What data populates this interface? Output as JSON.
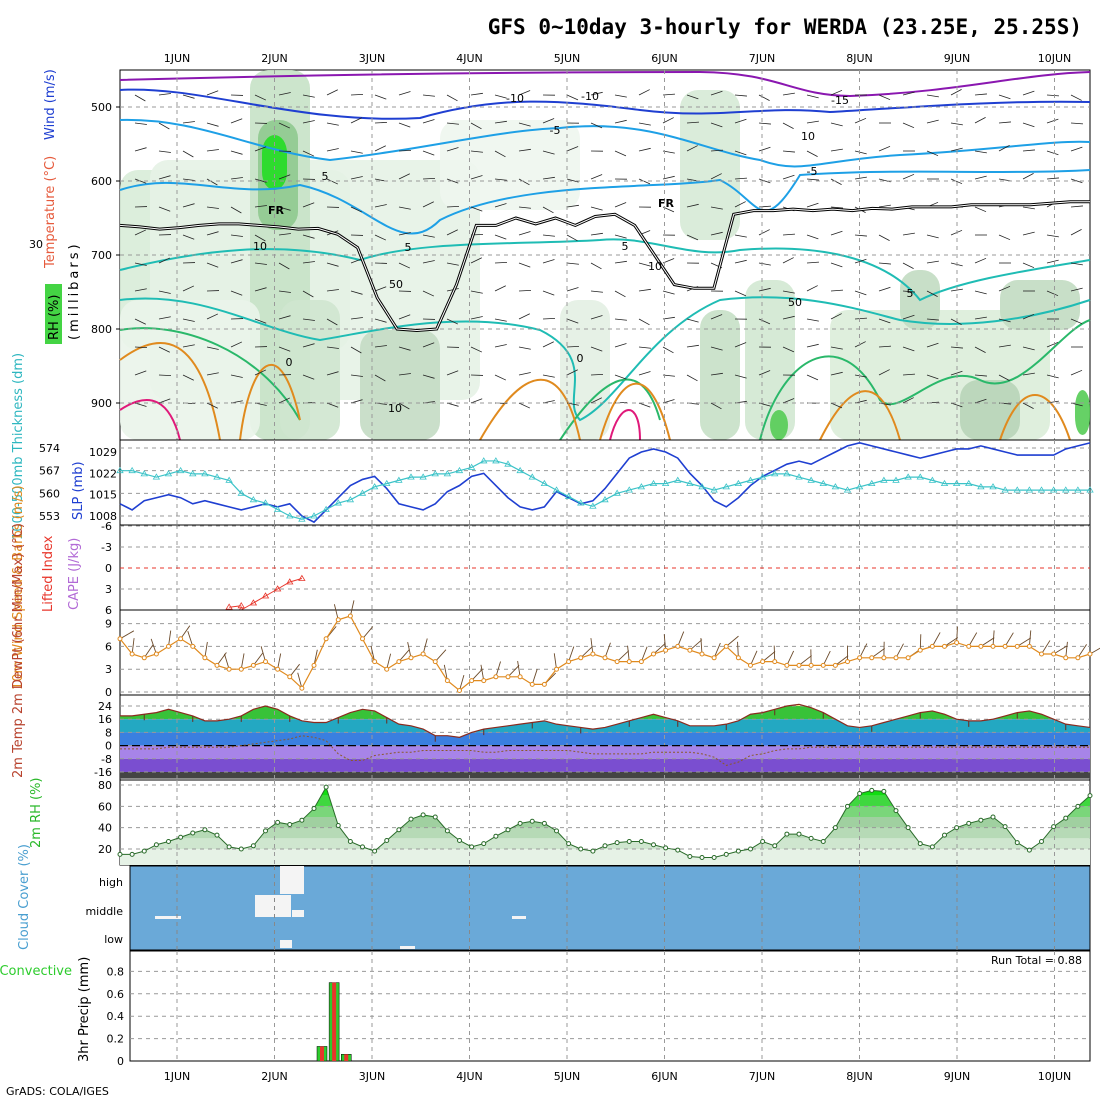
{
  "header": {
    "title": "GFS 0~10day 3-hourly for WERDA (23.25E, 25.25S)",
    "credit": "GrADS: COLA/IGES"
  },
  "time_axis": {
    "labels": [
      "1JUN",
      "2JUN",
      "3JUN",
      "4JUN",
      "5JUN",
      "6JUN",
      "7JUN",
      "8JUN",
      "9JUN",
      "10JUN"
    ]
  },
  "colors": {
    "purple": "#8a17b0",
    "blue": "#1f3fd1",
    "lightblue": "#1ea0e6",
    "teal": "#1fbcb4",
    "green": "#2ab86a",
    "orange": "#e08a1e",
    "magenta": "#e0197a",
    "cyan": "#3cc3c8",
    "cloud": "#6aa9d8",
    "precip_green": "#2ecc2e",
    "precip_red": "#e8362b"
  },
  "chart_data": [
    {
      "type": "heatmap",
      "name": "vertical cross-section",
      "ylabel_parts": [
        "RH (%)",
        "Temperature (°C)",
        "Wind (m/s)"
      ],
      "ylabel_units": "(millibars)",
      "ylim": [
        950,
        450
      ],
      "yticks": [
        500,
        600,
        700,
        800,
        900
      ],
      "contour_labels": [
        "-15",
        "-10",
        "-5",
        "-5",
        "5",
        "10",
        "5",
        "5",
        "10",
        "0",
        "-10",
        "10",
        "10",
        "50",
        "50",
        "30",
        "0",
        "5"
      ],
      "freezing_label": "FR",
      "freezing_level_mb": [
        660,
        662,
        665,
        663,
        660,
        658,
        658,
        660,
        662,
        665,
        664,
        672,
        690,
        758,
        800,
        802,
        800,
        740,
        660,
        660,
        650,
        658,
        650,
        660,
        648,
        645,
        660,
        700,
        740,
        745,
        745,
        645,
        640,
        640,
        638,
        640,
        638,
        640,
        637,
        638,
        635,
        635,
        635,
        632,
        632,
        632,
        632,
        630,
        628,
        628
      ]
    },
    {
      "type": "line",
      "name": "thickness and SLP",
      "ylabel_left": "1000-500mb Thickness (dm)",
      "ylabel_right": "SLP (mb)",
      "left_ticks": [
        574,
        567,
        560,
        553
      ],
      "right_ticks": [
        1029,
        1022,
        1015,
        1008
      ],
      "series": [
        {
          "name": "1000-500mb Thickness (dm)",
          "values": [
            567,
            567,
            566,
            565,
            566,
            567,
            566,
            566,
            565,
            564,
            560,
            558,
            557,
            555,
            553,
            552,
            553,
            555,
            557,
            558,
            560,
            562,
            563,
            564,
            565,
            565,
            566,
            566,
            567,
            568,
            570,
            570,
            569,
            567,
            565,
            563,
            561,
            559,
            557,
            556,
            558,
            560,
            561,
            562,
            563,
            563,
            564,
            563,
            562,
            561,
            562,
            563,
            564,
            565,
            566,
            566,
            565,
            564,
            563,
            562,
            561,
            562,
            563,
            564,
            564,
            565,
            565,
            564,
            563,
            563,
            563,
            562,
            562,
            561,
            561,
            561,
            561,
            561,
            561,
            561,
            561
          ]
        },
        {
          "name": "SLP (mb)",
          "values": [
            1012,
            1010,
            1013,
            1014,
            1015,
            1014,
            1012,
            1013,
            1012,
            1011,
            1010,
            1011,
            1012,
            1011,
            1012,
            1008,
            1006,
            1010,
            1014,
            1018,
            1020,
            1021,
            1017,
            1012,
            1011,
            1010,
            1012,
            1016,
            1018,
            1021,
            1022,
            1018,
            1014,
            1011,
            1010,
            1011,
            1016,
            1014,
            1012,
            1013,
            1017,
            1022,
            1027,
            1029,
            1030,
            1029,
            1027,
            1022,
            1018,
            1013,
            1011,
            1014,
            1018,
            1021,
            1023,
            1025,
            1026,
            1025,
            1027,
            1029,
            1031,
            1032,
            1031,
            1030,
            1029,
            1028,
            1027,
            1028,
            1029,
            1030,
            1030,
            1031,
            1030,
            1029,
            1028,
            1028,
            1028,
            1028,
            1030,
            1031,
            1032
          ]
        }
      ]
    },
    {
      "type": "line",
      "name": "lifted index and CAPE",
      "ylabel_left": "Lifted Index",
      "ylabel_right": "CAPE (J/kg)",
      "ylim": [
        6,
        -6
      ],
      "yticks": [
        "-6",
        "-3",
        "0",
        "3",
        "6"
      ],
      "series": [
        {
          "name": "Lifted Index",
          "x": [
            10,
            11,
            12,
            13,
            14,
            15
          ],
          "values": [
            6,
            5,
            4,
            3,
            2,
            1.5
          ]
        },
        {
          "name": "Lifted Index (early)",
          "x": [
            9,
            10
          ],
          "values": [
            5.6,
            5.4
          ]
        }
      ]
    },
    {
      "type": "line",
      "name": "10m wind",
      "ylabel": "10m Wind Speed & Barbs (m/s)",
      "ylim": [
        0,
        10
      ],
      "yticks": [
        0,
        3,
        6,
        9
      ],
      "series": [
        {
          "name": "10m Wind Speed (m/s)",
          "values": [
            7,
            5,
            4.5,
            5,
            6,
            7,
            6,
            4.5,
            3.5,
            3,
            3,
            3.5,
            4,
            3,
            2,
            0.5,
            3.5,
            7,
            9.5,
            10,
            7,
            4,
            3,
            4,
            4.5,
            5,
            4,
            1.5,
            0.2,
            1.5,
            1.5,
            2,
            2,
            2,
            1,
            1,
            3,
            4,
            4.5,
            5,
            4.5,
            4,
            4,
            4,
            5,
            5.5,
            6,
            5.5,
            5,
            4.5,
            6,
            4.5,
            3.5,
            4,
            4,
            3.5,
            3.5,
            3.5,
            3.5,
            3.5,
            4,
            4.5,
            4.5,
            4.5,
            4.5,
            4.5,
            5.5,
            6,
            6,
            6.5,
            6,
            6,
            6,
            6,
            6,
            6,
            5,
            5,
            4.5,
            4.5,
            5
          ]
        }
      ]
    },
    {
      "type": "area",
      "name": "2m temperature and dewpoint",
      "ylabel": "2m Temp 2m DewPt (6hr Min/Max) (°C)",
      "ylim": [
        -16,
        28
      ],
      "yticks": [
        24,
        16,
        8,
        0,
        -8,
        -16
      ],
      "series": [
        {
          "name": "2m Temp",
          "values": [
            18,
            18,
            19,
            20,
            22,
            20,
            18,
            15,
            15,
            16,
            18,
            22,
            24,
            22,
            18,
            15,
            14,
            14,
            17,
            20,
            22,
            21,
            17,
            13,
            12,
            10,
            6,
            6,
            5,
            8,
            10,
            11,
            12,
            13,
            14,
            15,
            13,
            12,
            11,
            10,
            11,
            13,
            15,
            17,
            19,
            17,
            15,
            12,
            12,
            12,
            13,
            15,
            19,
            20,
            22,
            24,
            25,
            23,
            20,
            16,
            12,
            11,
            12,
            14,
            16,
            18,
            20,
            21,
            19,
            16,
            15,
            15,
            16,
            18,
            20,
            21,
            19,
            16,
            13,
            12,
            11
          ]
        },
        {
          "name": "2m DewPt",
          "values": [
            -2,
            -2,
            -2,
            -2,
            -1,
            -1,
            -1,
            -1,
            -1,
            -1,
            0,
            1,
            2,
            3,
            4,
            6,
            5,
            3,
            -5,
            -9,
            -9,
            -6,
            -5,
            -4,
            -4,
            -3,
            -3,
            -3,
            -3,
            -3,
            -4,
            -4,
            -3,
            -3,
            -3,
            -3,
            -3,
            -3,
            -4,
            -5,
            -5,
            -5,
            -5,
            -5,
            -4,
            -4,
            -4,
            -4,
            -5,
            -7,
            -12,
            -10,
            -6,
            -5,
            -3,
            -2,
            -2,
            -1,
            -1,
            -1,
            -1,
            -1,
            -1,
            -1,
            -1,
            -1,
            -1,
            -1,
            -1,
            -1,
            -1,
            -1,
            -1,
            -1,
            -1,
            -1,
            -1,
            -1,
            -1,
            -1,
            -1
          ]
        }
      ]
    },
    {
      "type": "area",
      "name": "2m relative humidity",
      "ylabel": "2m RH (%)",
      "ylim": [
        0,
        80
      ],
      "yticks": [
        20,
        40,
        60,
        80
      ],
      "series": [
        {
          "name": "2m RH (%)",
          "values": [
            15,
            15,
            18,
            24,
            27,
            31,
            35,
            38,
            33,
            22,
            20,
            23,
            37,
            45,
            43,
            47,
            58,
            78,
            42,
            27,
            22,
            18,
            28,
            38,
            48,
            52,
            50,
            37,
            28,
            22,
            25,
            32,
            38,
            44,
            46,
            44,
            37,
            25,
            20,
            18,
            23,
            26,
            27,
            27,
            24,
            21,
            19,
            13,
            12,
            12,
            15,
            18,
            20,
            27,
            23,
            34,
            34,
            30,
            27,
            40,
            60,
            72,
            75,
            74,
            56,
            40,
            25,
            22,
            33,
            40,
            44,
            47,
            50,
            41,
            26,
            19,
            27,
            41,
            49,
            60,
            70
          ]
        }
      ]
    },
    {
      "type": "heatmap",
      "name": "cloud cover",
      "ylabel": "Cloud Cover (%)",
      "yticks": [
        "high",
        "middle",
        "low"
      ]
    },
    {
      "type": "bar",
      "name": "3hr precipitation",
      "ylabel_left": "Total / Rain Convective",
      "ylabel": "3hr Precip (mm)",
      "ylim": [
        0,
        1
      ],
      "yticks": [
        "0",
        "0.2",
        "0.4",
        "0.6",
        "0.8"
      ],
      "run_total_label": "Run Total = 0.88",
      "bars": [
        {
          "step": 16,
          "total": 0.13,
          "convective": 0.13
        },
        {
          "step": 17,
          "total": 0.7,
          "convective": 0.7
        },
        {
          "step": 18,
          "total": 0.06,
          "convective": 0.06
        }
      ]
    }
  ]
}
